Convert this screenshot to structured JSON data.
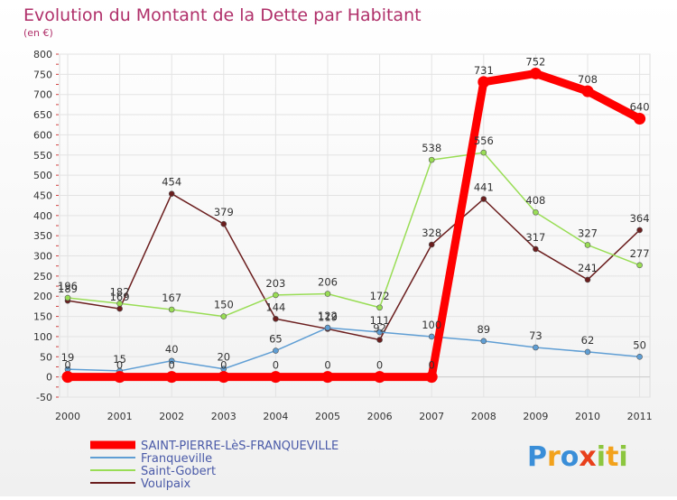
{
  "chart_data": {
    "type": "line",
    "title": "Evolution du Montant de la Dette par Habitant",
    "subtitle": "(en €)",
    "x": [
      "2000",
      "2001",
      "2002",
      "2003",
      "2004",
      "2005",
      "2006",
      "2007",
      "2008",
      "2009",
      "2010",
      "2011"
    ],
    "yticks": [
      -50,
      0,
      50,
      100,
      150,
      200,
      250,
      300,
      350,
      400,
      450,
      500,
      550,
      600,
      650,
      700,
      750,
      800
    ],
    "ylim": [
      -50,
      800
    ],
    "grid": true,
    "legend_position": "bottom-left",
    "series": [
      {
        "name": "SAINT-PIERRE-LèS-FRANQUEVILLE",
        "color": "#ff0000",
        "values": [
          0,
          0,
          0,
          0,
          0,
          0,
          0,
          0,
          731,
          752,
          708,
          640
        ]
      },
      {
        "name": "Franqueville",
        "color": "#5f9ed4",
        "values": [
          19,
          15,
          40,
          20,
          65,
          122,
          111,
          100,
          89,
          73,
          62,
          50
        ]
      },
      {
        "name": "Saint-Gobert",
        "color": "#99dd55",
        "values": [
          196,
          182,
          167,
          150,
          203,
          206,
          172,
          538,
          556,
          408,
          327,
          277
        ]
      },
      {
        "name": "Voulpaix",
        "color": "#6b1e1e",
        "values": [
          189,
          169,
          454,
          379,
          144,
          119,
          92,
          328,
          441,
          317,
          241,
          364
        ]
      }
    ]
  },
  "brand": {
    "letters": [
      "P",
      "r",
      "o",
      "x",
      "i",
      "t",
      "i"
    ],
    "colors": [
      "#3a8ed8",
      "#f2a21c",
      "#3a8ed8",
      "#e8401c",
      "#8cc63f",
      "#f2a21c",
      "#8cc63f"
    ]
  }
}
